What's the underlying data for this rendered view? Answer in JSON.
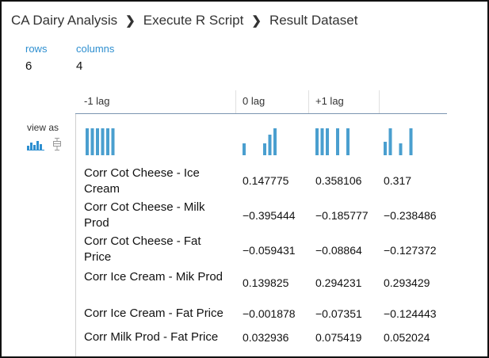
{
  "breadcrumb": [
    "CA Dairy Analysis",
    "Execute R Script",
    "Result Dataset"
  ],
  "stats": {
    "rows_label": "rows",
    "rows_value": "6",
    "columns_label": "columns",
    "columns_value": "4"
  },
  "view_as": {
    "label": "view as",
    "options": [
      "histogram-icon",
      "boxplot-icon"
    ]
  },
  "columns": [
    "-1 lag",
    "0 lag",
    "+1 lag"
  ],
  "histograms": {
    "-1 lag": [
      1,
      1,
      1,
      1,
      1,
      1
    ],
    "0 lag": [
      0.45,
      0,
      0,
      0,
      0.45,
      0.75,
      1
    ],
    "+1 lag": [
      1,
      1,
      1,
      0,
      1,
      0,
      1
    ],
    "extra": [
      0.5,
      1,
      0,
      0.45,
      0,
      1
    ]
  },
  "colors": {
    "accent": "#2e8fd0",
    "histogram_bar": "#4a9fcf",
    "header_rule": "#7b95b0"
  },
  "rows": [
    {
      "name": "Corr Cot Cheese - Ice Cream",
      "values": [
        "0.147775",
        "0.358106",
        "0.317"
      ]
    },
    {
      "name": "Corr Cot Cheese - Milk Prod",
      "values": [
        "−0.395444",
        "−0.185777",
        "−0.238486"
      ]
    },
    {
      "name": "Corr Cot Cheese - Fat Price",
      "values": [
        "−0.059431",
        "−0.08864",
        "−0.127372"
      ]
    },
    {
      "name": "Corr Ice Cream - Mik Prod",
      "values": [
        "0.139825",
        "0.294231",
        "0.293429"
      ]
    },
    {
      "name": "Corr Ice Cream - Fat Price",
      "values": [
        "−0.001878",
        "−0.07351",
        "−0.124443"
      ]
    },
    {
      "name": "Corr Milk Prod - Fat Price",
      "values": [
        "0.032936",
        "0.075419",
        "0.052024"
      ]
    }
  ]
}
